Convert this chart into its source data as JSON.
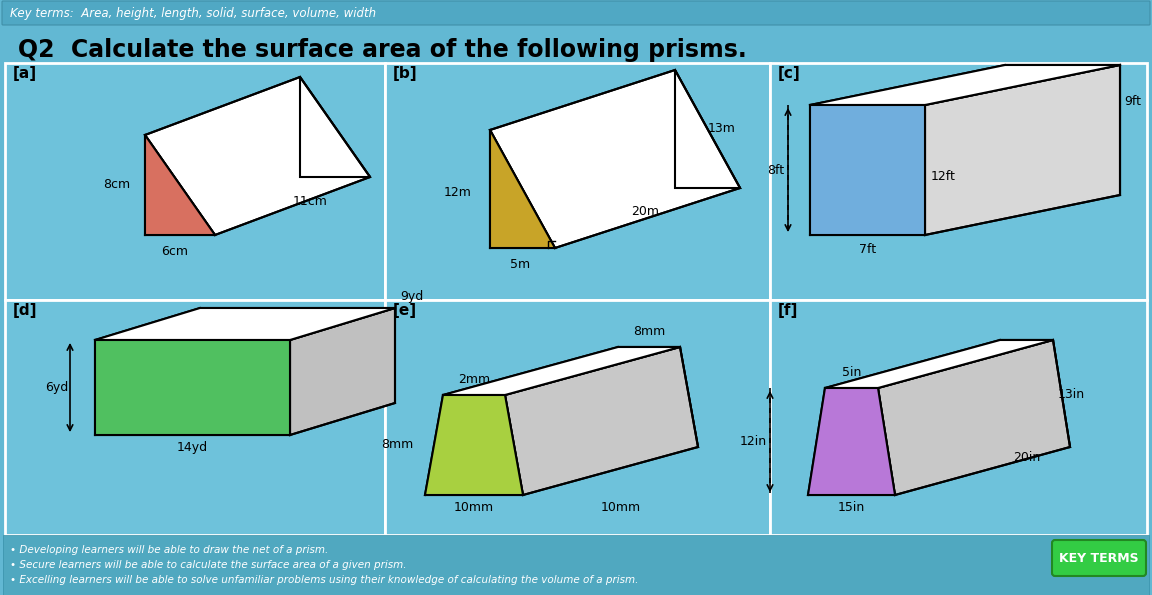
{
  "bg_color": "#62b8d3",
  "cell_bg": "#6ec2db",
  "header_bg": "#50a8c4",
  "title": "Q2  Calculate the surface area of the following prisms.",
  "key_terms_text": "Key terms:  Area, height, length, solid, surface, volume, width",
  "footer_lines": [
    "• Developing learners will be able to draw the net of a prism.",
    "• Secure learners will be able to calculate the surface area of a given prism.",
    "• Excelling learners will be able to solve unfamiliar problems using their knowledge of calculating the volume of a prism."
  ],
  "key_terms_btn": "KEY TERMS",
  "key_terms_btn_color": "#33cc44",
  "cell_cols": [
    5,
    385,
    770,
    1147
  ],
  "cell_rows": [
    63,
    300,
    535
  ],
  "face_colors": {
    "a": "#d87060",
    "b": "#c8a428",
    "c": "#70aedd",
    "d": "#50c060",
    "e": "#a8d040",
    "f": "#b878d8"
  }
}
